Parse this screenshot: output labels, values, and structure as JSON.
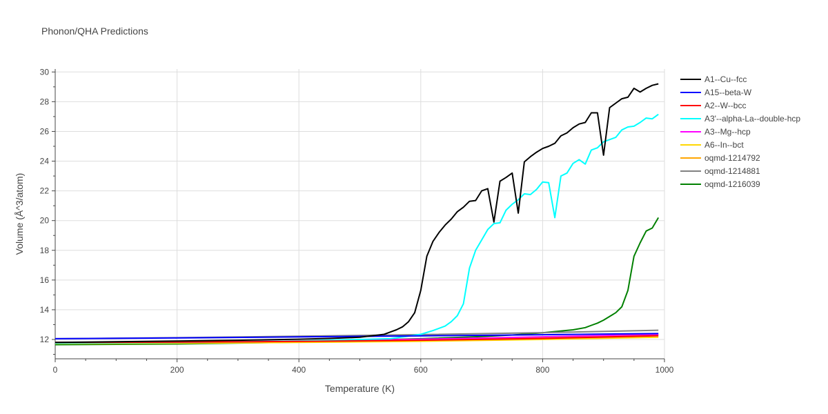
{
  "chart_data": {
    "type": "line",
    "title": "Phonon/QHA Predictions",
    "xlabel": "Temperature (K)",
    "ylabel": "Volume (Å^3/atom)",
    "xlim": [
      0,
      1000
    ],
    "ylim": [
      10.7,
      30.2
    ],
    "xticks": [
      0,
      200,
      400,
      600,
      800,
      1000
    ],
    "yticks": [
      12,
      14,
      16,
      18,
      20,
      22,
      24,
      26,
      28,
      30
    ],
    "grid": true,
    "legend_position": "right",
    "series": [
      {
        "name": "A1--Cu--fcc",
        "color": "#000000",
        "x": [
          0,
          100,
          200,
          300,
          400,
          450,
          500,
          520,
          540,
          550,
          560,
          570,
          580,
          590,
          600,
          610,
          620,
          630,
          640,
          650,
          660,
          670,
          680,
          690,
          700,
          710,
          720,
          730,
          740,
          750,
          760,
          770,
          780,
          790,
          800,
          810,
          820,
          830,
          840,
          850,
          860,
          870,
          880,
          890,
          900,
          910,
          920,
          930,
          940,
          950,
          960,
          970,
          980,
          990
        ],
        "y": [
          11.8,
          11.85,
          11.9,
          11.95,
          12.02,
          12.07,
          12.15,
          12.25,
          12.35,
          12.5,
          12.65,
          12.85,
          13.2,
          13.8,
          15.3,
          17.6,
          18.6,
          19.2,
          19.7,
          20.1,
          20.6,
          20.9,
          21.3,
          21.35,
          22.0,
          22.15,
          19.9,
          22.65,
          22.9,
          23.2,
          20.5,
          23.95,
          24.3,
          24.6,
          24.85,
          25.0,
          25.2,
          25.7,
          25.9,
          26.25,
          26.5,
          26.6,
          27.25,
          27.25,
          24.4,
          27.6,
          27.9,
          28.2,
          28.3,
          28.9,
          28.65,
          28.9,
          29.1,
          29.2
        ]
      },
      {
        "name": "A15--beta-W",
        "color": "#0000ff",
        "x": [
          0,
          200,
          400,
          600,
          800,
          990
        ],
        "y": [
          12.05,
          12.1,
          12.17,
          12.24,
          12.32,
          12.4
        ]
      },
      {
        "name": "A2--W--bcc",
        "color": "#ff0000",
        "x": [
          0,
          200,
          400,
          600,
          800,
          990
        ],
        "y": [
          11.8,
          11.82,
          11.87,
          11.95,
          12.07,
          12.25
        ]
      },
      {
        "name": "A3'--alpha-La--double-hcp",
        "color": "#00ffff",
        "x": [
          0,
          200,
          400,
          550,
          600,
          620,
          640,
          650,
          660,
          670,
          680,
          690,
          700,
          710,
          720,
          730,
          740,
          750,
          760,
          770,
          780,
          790,
          800,
          810,
          820,
          830,
          840,
          850,
          860,
          870,
          880,
          890,
          900,
          910,
          920,
          930,
          940,
          950,
          960,
          970,
          980,
          990
        ],
        "y": [
          11.75,
          11.8,
          11.9,
          12.05,
          12.35,
          12.6,
          12.9,
          13.2,
          13.6,
          14.4,
          16.8,
          18.0,
          18.7,
          19.4,
          19.8,
          19.85,
          20.7,
          21.1,
          21.4,
          21.8,
          21.75,
          22.1,
          22.6,
          22.55,
          20.2,
          23.0,
          23.2,
          23.85,
          24.1,
          23.8,
          24.75,
          24.9,
          25.3,
          25.45,
          25.6,
          26.1,
          26.3,
          26.35,
          26.6,
          26.9,
          26.85,
          27.15
        ]
      },
      {
        "name": "A3--Mg--hcp",
        "color": "#ff00ff",
        "x": [
          0,
          200,
          400,
          600,
          800,
          990
        ],
        "y": [
          11.78,
          11.82,
          11.9,
          12.02,
          12.18,
          12.35
        ]
      },
      {
        "name": "A6--In--bct",
        "color": "#ffd700",
        "x": [
          0,
          200,
          400,
          600,
          800,
          990
        ],
        "y": [
          11.72,
          11.75,
          11.8,
          11.88,
          12.0,
          12.15
        ]
      },
      {
        "name": "oqmd-1214792",
        "color": "#ffa500",
        "x": [
          0,
          200,
          400,
          600,
          800,
          990
        ],
        "y": [
          11.74,
          11.77,
          11.85,
          11.95,
          12.1,
          12.3
        ]
      },
      {
        "name": "oqmd-1214881",
        "color": "#808080",
        "x": [
          0,
          200,
          400,
          600,
          800,
          990
        ],
        "y": [
          12.05,
          12.12,
          12.22,
          12.33,
          12.46,
          12.62
        ]
      },
      {
        "name": "oqmd-1216039",
        "color": "#008000",
        "x": [
          0,
          200,
          400,
          500,
          600,
          700,
          750,
          800,
          850,
          870,
          880,
          890,
          900,
          910,
          920,
          930,
          940,
          950,
          960,
          970,
          980,
          990
        ],
        "y": [
          11.65,
          11.7,
          11.82,
          11.95,
          12.05,
          12.2,
          12.3,
          12.45,
          12.65,
          12.8,
          12.95,
          13.1,
          13.3,
          13.55,
          13.8,
          14.2,
          15.3,
          17.6,
          18.5,
          19.3,
          19.5,
          20.2
        ]
      }
    ]
  }
}
